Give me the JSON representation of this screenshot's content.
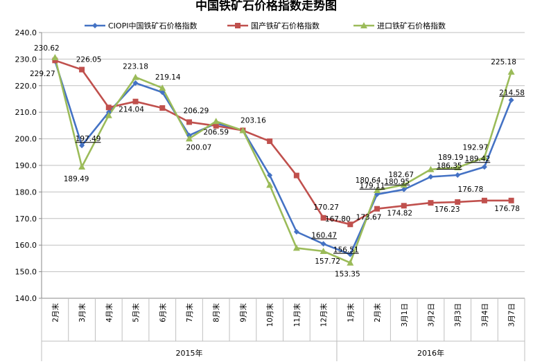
{
  "chart_data": {
    "type": "line",
    "title": "中国铁矿石价格指数走势图",
    "ylim": [
      140,
      240
    ],
    "yticks": [
      "140.0",
      "150.0",
      "160.0",
      "170.0",
      "180.0",
      "190.0",
      "200.0",
      "210.0",
      "220.0",
      "230.0",
      "240.0"
    ],
    "yticks_values": [
      140,
      150,
      160,
      170,
      180,
      190,
      200,
      210,
      220,
      230,
      240
    ],
    "categories": [
      "2月末",
      "3月末",
      "4月末",
      "5月末",
      "6月末",
      "7月末",
      "8月末",
      "9月末",
      "10月末",
      "11月末",
      "12月末",
      "1月末",
      "2月末",
      "3月1日",
      "3月2日",
      "3月3日",
      "3月4日",
      "3月7日"
    ],
    "year_groups": [
      {
        "label": "2015年",
        "start": 0,
        "end": 10
      },
      {
        "label": "2016年",
        "start": 11,
        "end": 17
      }
    ],
    "grid": "horizontal",
    "legend_position": "top",
    "series": [
      {
        "name": "CIOPI中国铁矿石价格指数",
        "color": "#4472C4",
        "marker": "diamond",
        "values": [
          229.27,
          197.49,
          210.0,
          221.0,
          217.5,
          201.3,
          205.8,
          203.2,
          186.3,
          165.0,
          160.47,
          156.51,
          179.11,
          180.95,
          185.7,
          186.35,
          189.42,
          214.58
        ]
      },
      {
        "name": "国产铁矿石价格指数",
        "color": "#C0504D",
        "marker": "square",
        "values": [
          229.5,
          226.05,
          211.8,
          214.04,
          211.6,
          206.29,
          204.9,
          203.16,
          199.1,
          186.2,
          170.27,
          167.8,
          173.67,
          174.82,
          175.9,
          176.23,
          176.78,
          176.78
        ]
      },
      {
        "name": "进口铁矿石价格指数",
        "color": "#9BBB59",
        "marker": "triangle",
        "values": [
          230.62,
          189.49,
          208.8,
          223.18,
          219.14,
          200.07,
          206.59,
          203.16,
          182.6,
          158.9,
          157.72,
          153.35,
          180.64,
          182.67,
          188.5,
          189.19,
          192.97,
          225.18
        ]
      }
    ],
    "data_labels": [
      {
        "series": 2,
        "index": 0,
        "text": "230.62",
        "underline": false
      },
      {
        "series": 0,
        "index": 0,
        "text": "229.27",
        "underline": false
      },
      {
        "series": 1,
        "index": 1,
        "text": "226.05",
        "underline": false
      },
      {
        "series": 0,
        "index": 1,
        "text": "197.49",
        "underline": true
      },
      {
        "series": 2,
        "index": 1,
        "text": "189.49",
        "underline": false
      },
      {
        "series": 2,
        "index": 3,
        "text": "223.18",
        "underline": false
      },
      {
        "series": 1,
        "index": 3,
        "text": "214.04",
        "underline": false
      },
      {
        "series": 2,
        "index": 4,
        "text": "219.14",
        "underline": false
      },
      {
        "series": 1,
        "index": 5,
        "text": "206.29",
        "underline": false
      },
      {
        "series": 2,
        "index": 5,
        "text": "200.07",
        "underline": false
      },
      {
        "series": 2,
        "index": 6,
        "text": "206.59",
        "underline": false
      },
      {
        "series": 1,
        "index": 7,
        "text": "203.16",
        "underline": false
      },
      {
        "series": 1,
        "index": 10,
        "text": "170.27",
        "underline": false
      },
      {
        "series": 0,
        "index": 10,
        "text": "160.47",
        "underline": true
      },
      {
        "series": 2,
        "index": 10,
        "text": "157.72",
        "underline": false
      },
      {
        "series": 1,
        "index": 11,
        "text": "167.80",
        "underline": false
      },
      {
        "series": 0,
        "index": 11,
        "text": "156.51",
        "underline": true
      },
      {
        "series": 2,
        "index": 11,
        "text": "153.35",
        "underline": false
      },
      {
        "series": 2,
        "index": 12,
        "text": "180.64",
        "underline": false
      },
      {
        "series": 0,
        "index": 12,
        "text": "179.11",
        "underline": true
      },
      {
        "series": 1,
        "index": 12,
        "text": "173.67",
        "underline": false
      },
      {
        "series": 2,
        "index": 13,
        "text": "182.67",
        "underline": false
      },
      {
        "series": 0,
        "index": 13,
        "text": "180.95",
        "underline": true
      },
      {
        "series": 1,
        "index": 13,
        "text": "174.82",
        "underline": false
      },
      {
        "series": 2,
        "index": 15,
        "text": "189.19",
        "underline": false
      },
      {
        "series": 0,
        "index": 15,
        "text": "186.35",
        "underline": true
      },
      {
        "series": 1,
        "index": 15,
        "text": "176.23",
        "underline": false
      },
      {
        "series": 2,
        "index": 16,
        "text": "192.97",
        "underline": false
      },
      {
        "series": 0,
        "index": 16,
        "text": "189.42",
        "underline": true
      },
      {
        "series": 1,
        "index": 16,
        "text": "176.78",
        "underline": false
      },
      {
        "series": 2,
        "index": 17,
        "text": "225.18",
        "underline": false
      },
      {
        "series": 0,
        "index": 17,
        "text": "214.58",
        "underline": true
      },
      {
        "series": 1,
        "index": 17,
        "text": "176.78",
        "underline": false
      }
    ]
  }
}
